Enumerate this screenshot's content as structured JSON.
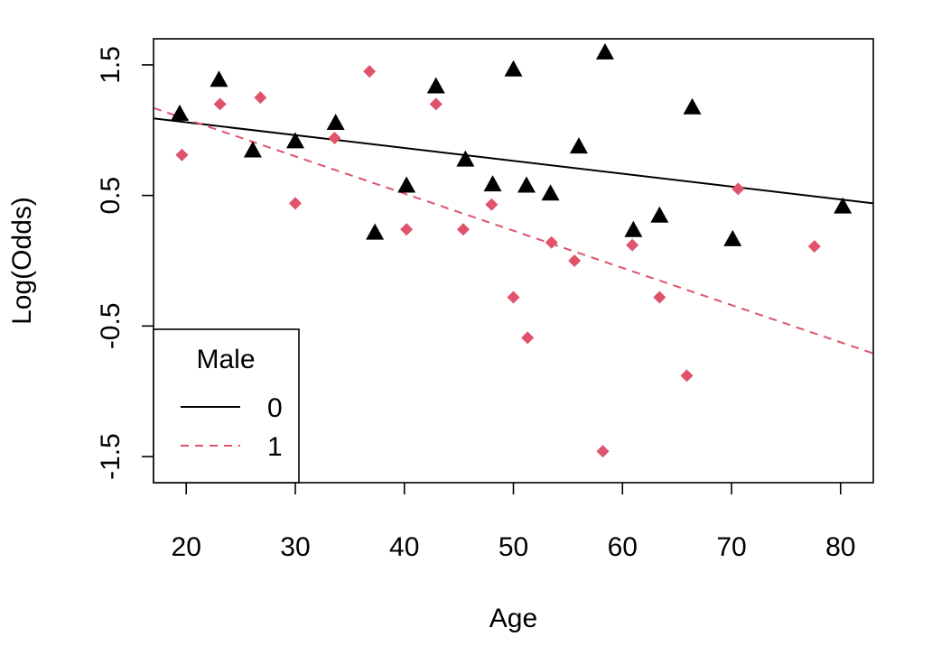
{
  "chart_data": {
    "type": "scatter",
    "title": "",
    "xlabel": "Age",
    "ylabel": "Log(Odds)",
    "xlim": [
      17,
      83
    ],
    "ylim": [
      -1.7,
      1.7
    ],
    "xticks": [
      20,
      30,
      40,
      50,
      60,
      70,
      80
    ],
    "yticks": [
      -1.5,
      -0.5,
      0.5,
      1.5
    ],
    "ytick_labels": [
      "-1.5",
      "-0.5",
      "0.5",
      "1.5"
    ],
    "grid": false,
    "legend": {
      "title": "Male",
      "position": "bottom-left",
      "entries": [
        {
          "label": "0",
          "color": "#000000",
          "linestyle": "solid"
        },
        {
          "label": "1",
          "color": "#DF536B",
          "linestyle": "dashed"
        }
      ]
    },
    "series": [
      {
        "name": "0",
        "color": "#000000",
        "marker": "triangle",
        "points": [
          [
            19.4,
            1.12
          ],
          [
            23.0,
            1.38
          ],
          [
            26.1,
            0.84
          ],
          [
            30.0,
            0.91
          ],
          [
            33.7,
            1.05
          ],
          [
            37.3,
            0.21
          ],
          [
            40.2,
            0.57
          ],
          [
            42.9,
            1.33
          ],
          [
            45.6,
            0.77
          ],
          [
            48.1,
            0.58
          ],
          [
            50.0,
            1.46
          ],
          [
            51.2,
            0.57
          ],
          [
            53.4,
            0.51
          ],
          [
            56.0,
            0.87
          ],
          [
            58.4,
            1.59
          ],
          [
            61.0,
            0.23
          ],
          [
            63.4,
            0.34
          ],
          [
            66.4,
            1.17
          ],
          [
            70.1,
            0.16
          ],
          [
            80.2,
            0.41
          ]
        ],
        "fit": {
          "x": [
            17,
            83
          ],
          "y": [
            1.09,
            0.44
          ]
        }
      },
      {
        "name": "1",
        "color": "#DF536B",
        "marker": "diamond",
        "points": [
          [
            19.6,
            0.81
          ],
          [
            23.1,
            1.2
          ],
          [
            26.8,
            1.25
          ],
          [
            30.0,
            0.44
          ],
          [
            33.6,
            0.94
          ],
          [
            36.8,
            1.45
          ],
          [
            40.2,
            0.24
          ],
          [
            42.9,
            1.2
          ],
          [
            45.4,
            0.24
          ],
          [
            48.0,
            0.43
          ],
          [
            50.0,
            -0.28
          ],
          [
            51.3,
            -0.59
          ],
          [
            53.5,
            0.14
          ],
          [
            55.6,
            0.0
          ],
          [
            58.2,
            -1.46
          ],
          [
            60.9,
            0.12
          ],
          [
            63.4,
            -0.28
          ],
          [
            65.9,
            -0.88
          ],
          [
            70.6,
            0.55
          ],
          [
            77.6,
            0.11
          ]
        ],
        "fit": {
          "x": [
            17,
            83
          ],
          "y": [
            1.17,
            -0.71
          ]
        }
      }
    ]
  }
}
